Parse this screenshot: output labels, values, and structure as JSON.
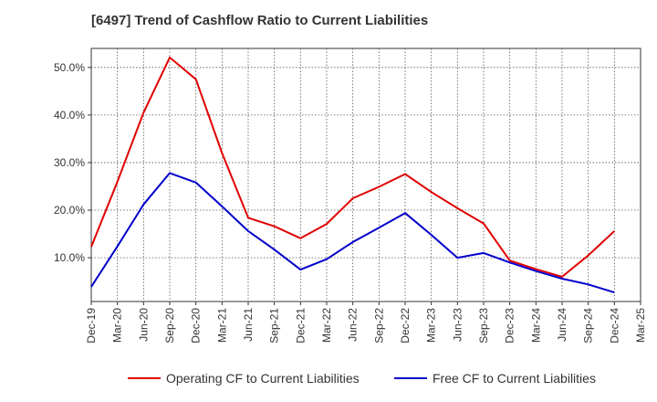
{
  "chart_data": {
    "type": "line",
    "title": "[6497]  Trend of Cashflow Ratio to Current Liabilities",
    "xlabel": "",
    "ylabel": "",
    "x": [
      "Dec-19",
      "Mar-20",
      "Jun-20",
      "Sep-20",
      "Dec-20",
      "Mar-21",
      "Jun-21",
      "Sep-21",
      "Dec-21",
      "Mar-22",
      "Jun-22",
      "Sep-22",
      "Dec-22",
      "Mar-23",
      "Jun-23",
      "Sep-23",
      "Dec-23",
      "Mar-24",
      "Jun-24",
      "Sep-24",
      "Dec-24",
      "Mar-25"
    ],
    "yticks": [
      "10.0%",
      "20.0%",
      "30.0%",
      "40.0%",
      "50.0%"
    ],
    "ylim": [
      0.8,
      54.0
    ],
    "grid": true,
    "legend_position": "bottom",
    "series": [
      {
        "name": "Operating CF to Current Liabilities",
        "color": "#e00000",
        "values": [
          12.3,
          26.0,
          40.5,
          52.1,
          47.5,
          32.0,
          18.4,
          16.6,
          14.1,
          17.1,
          22.5,
          24.9,
          27.6,
          23.8,
          20.4,
          17.2,
          9.4,
          7.6,
          6.0,
          10.5,
          15.6,
          null
        ]
      },
      {
        "name": "Free CF to Current Liabilities",
        "color": "#0000cc",
        "values": [
          3.9,
          12.4,
          21.2,
          27.8,
          25.8,
          20.8,
          15.6,
          11.7,
          7.5,
          9.7,
          13.3,
          16.3,
          19.4,
          14.8,
          10.0,
          11.0,
          9.0,
          7.2,
          5.6,
          4.4,
          2.7,
          null
        ]
      }
    ]
  }
}
